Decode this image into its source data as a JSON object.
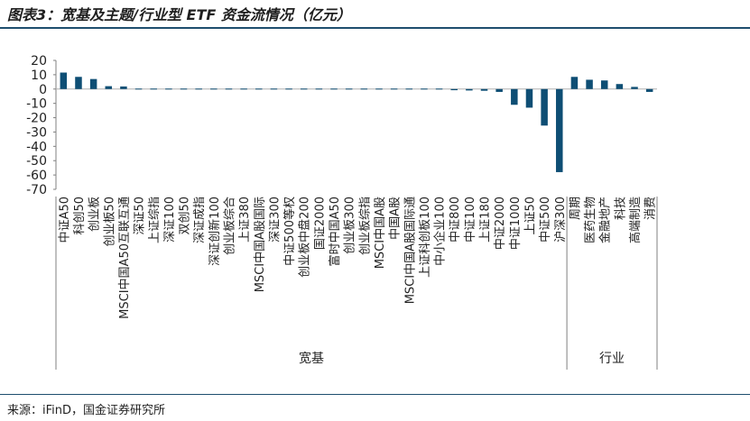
{
  "title": "图表3：宽基及主题/行业型 ETF 资金流情况（亿元）",
  "source": "来源：iFinD，国金证券研究所",
  "colors": {
    "bar": "#0e4e74",
    "axis": "#808080",
    "text": "#222222",
    "rule": "#1e4e6e"
  },
  "chart_data": {
    "type": "bar",
    "title": "",
    "xlabel": "",
    "ylabel": "",
    "ylim": [
      -70,
      20
    ],
    "yticks": [
      20,
      10,
      0,
      -10,
      -20,
      -30,
      -40,
      -50,
      -60,
      -70
    ],
    "grid": false,
    "categories": [
      "中证A50",
      "科创50",
      "创业板",
      "创业板50",
      "MSCI中国A50互联互通",
      "深证50",
      "上证综指",
      "深证100",
      "双创50",
      "深证成指",
      "深证创新100",
      "创业板综合",
      "上证380",
      "MSCI中国A股国际",
      "深证300",
      "中证500等权",
      "创业板中盘200",
      "国证2000",
      "富时中国A50",
      "创业板300",
      "创业板综指",
      "MSCI中国A股",
      "中国A股",
      "MSCI中国A股国际通",
      "上证科创板100",
      "中小企业100",
      "中证800",
      "中证100",
      "上证180",
      "中证2000",
      "中证1000",
      "上证50",
      "中证500",
      "沪深300",
      "周期",
      "医药生物",
      "金融地产",
      "科技",
      "高端制造",
      "消费"
    ],
    "values": [
      11.5,
      8.5,
      7,
      2,
      1.8,
      0.5,
      0.4,
      0.3,
      0.3,
      0.2,
      0.2,
      0.1,
      0.1,
      0,
      0,
      -0.1,
      -0.2,
      -0.2,
      -0.2,
      -0.3,
      -0.3,
      -0.3,
      -0.4,
      -0.4,
      -0.5,
      -0.6,
      -0.8,
      -1,
      -1.2,
      -2,
      -11,
      -13,
      -25.5,
      -58,
      8.5,
      6.5,
      6,
      3.5,
      1.5,
      -2
    ],
    "groups": [
      {
        "name": "宽基",
        "start": 0,
        "end": 33
      },
      {
        "name": "行业",
        "start": 34,
        "end": 39
      }
    ]
  }
}
